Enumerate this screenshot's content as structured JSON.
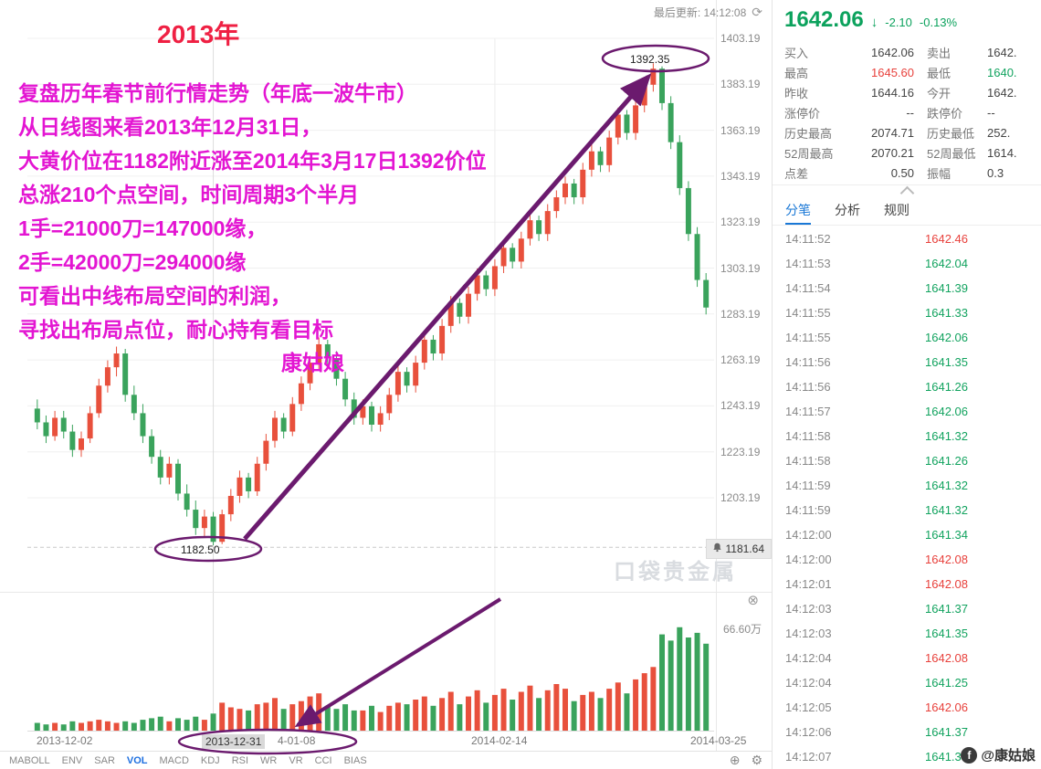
{
  "meta": {
    "last_update_label": "最后更新: 14:12:08"
  },
  "icons": {
    "refresh": "⟳",
    "close": "⊗",
    "circle_plus": "⊕",
    "gear": "⚙",
    "down": "↓"
  },
  "colors": {
    "up": "#e8503c",
    "down": "#3aa35c",
    "quote_green": "#0ca25d",
    "high_red": "#e8413c",
    "annotation_magenta": "#e315d2",
    "annotation_title_red": "#ef2043",
    "arrow_purple": "#6b1a6e",
    "active_tab_blue": "#1a78d6"
  },
  "chart": {
    "y_labels": [
      "1403.19",
      "1383.19",
      "1363.19",
      "1343.19",
      "1323.19",
      "1303.19",
      "1283.19",
      "1263.19",
      "1243.19",
      "1223.19",
      "1203.19"
    ],
    "x_labels": [
      "2013-12-02",
      "2013-12-31",
      "4-01-08",
      "2014-02-14",
      "2014-03-25"
    ],
    "current_price": "1181.64",
    "volume_max_label": "66.60万",
    "watermark": "口袋贵金属",
    "indicators": [
      "MABOLL",
      "ENV",
      "SAR",
      "VOL",
      "MACD",
      "KDJ",
      "RSI",
      "WR",
      "VR",
      "CCI",
      "BIAS"
    ],
    "active_indicator": "VOL"
  },
  "annotations": {
    "title": "2013年",
    "lines": [
      "复盘历年春节前行情走势（年底一波牛市）",
      "从日线图来看2013年12月31日，",
      "大黄价位在1182附近涨至2014年3月17日1392价位",
      "总涨210个点空间，时间周期3个半月",
      "1手=21000刀=147000缘，",
      "2手=42000刀=294000缘",
      "可看出中线布局空间的利润，",
      "寻找出布局点位，耐心持有看目标"
    ],
    "signature": "康姑娘",
    "high_label": "1392.35",
    "low_label": "1182.50"
  },
  "side": {
    "quote": {
      "price": "1642.06",
      "change": "-2.10",
      "change_pct": "-0.13%"
    },
    "stats_rows": [
      {
        "l1": "买入",
        "v1": "1642.06",
        "c1": "dark",
        "l2": "卖出",
        "v2": "1642.",
        "c2": "dark"
      },
      {
        "l1": "最高",
        "v1": "1645.60",
        "c1": "red",
        "l2": "最低",
        "v2": "1640.",
        "c2": "green"
      },
      {
        "l1": "昨收",
        "v1": "1644.16",
        "c1": "dark",
        "l2": "今开",
        "v2": "1642.",
        "c2": "dark"
      },
      {
        "l1": "涨停价",
        "v1": "--",
        "c1": "dark",
        "l2": "跌停价",
        "v2": "--",
        "c2": "dark"
      },
      {
        "l1": "历史最高",
        "v1": "2074.71",
        "c1": "dark",
        "l2": "历史最低",
        "v2": "252.",
        "c2": "dark"
      },
      {
        "l1": "52周最高",
        "v1": "2070.21",
        "c1": "dark",
        "l2": "52周最低",
        "v2": "1614.",
        "c2": "dark"
      },
      {
        "l1": "点差",
        "v1": "0.50",
        "c1": "dark",
        "l2": "振幅",
        "v2": "0.3",
        "c2": "dark"
      }
    ],
    "tabs": [
      {
        "label": "分笔",
        "active": true
      },
      {
        "label": "分析",
        "active": false
      },
      {
        "label": "规则",
        "active": false
      }
    ],
    "ticks": [
      {
        "t": "14:11:52",
        "p": "1642.46",
        "d": "up"
      },
      {
        "t": "14:11:53",
        "p": "1642.04",
        "d": "down"
      },
      {
        "t": "14:11:54",
        "p": "1641.39",
        "d": "down"
      },
      {
        "t": "14:11:55",
        "p": "1641.33",
        "d": "down"
      },
      {
        "t": "14:11:55",
        "p": "1642.06",
        "d": "down"
      },
      {
        "t": "14:11:56",
        "p": "1641.35",
        "d": "down"
      },
      {
        "t": "14:11:56",
        "p": "1641.26",
        "d": "down"
      },
      {
        "t": "14:11:57",
        "p": "1642.06",
        "d": "down"
      },
      {
        "t": "14:11:58",
        "p": "1641.32",
        "d": "down"
      },
      {
        "t": "14:11:58",
        "p": "1641.26",
        "d": "down"
      },
      {
        "t": "14:11:59",
        "p": "1641.32",
        "d": "down"
      },
      {
        "t": "14:11:59",
        "p": "1641.32",
        "d": "down"
      },
      {
        "t": "14:12:00",
        "p": "1641.34",
        "d": "down"
      },
      {
        "t": "14:12:00",
        "p": "1642.08",
        "d": "up"
      },
      {
        "t": "14:12:01",
        "p": "1642.08",
        "d": "up"
      },
      {
        "t": "14:12:03",
        "p": "1641.37",
        "d": "down"
      },
      {
        "t": "14:12:03",
        "p": "1641.35",
        "d": "down"
      },
      {
        "t": "14:12:04",
        "p": "1642.08",
        "d": "up"
      },
      {
        "t": "14:12:04",
        "p": "1641.25",
        "d": "down"
      },
      {
        "t": "14:12:05",
        "p": "1642.06",
        "d": "up"
      },
      {
        "t": "14:12:06",
        "p": "1641.37",
        "d": "down"
      },
      {
        "t": "14:12:07",
        "p": "1641.37",
        "d": "down"
      }
    ],
    "watermark_logo": "f",
    "watermark_text": "@康姑娘"
  },
  "chart_data": {
    "type": "candlestick",
    "x_range": [
      "2013-12-02",
      "2014-03-25"
    ],
    "y_axis_top": 1403.19,
    "y_axis_bottom": 1203.19,
    "low_point": {
      "date": "2013-12-31",
      "price": 1182.5
    },
    "high_point": {
      "date": "2014-03-17",
      "price": 1392.35
    },
    "volume_unit": "万",
    "volume_max": 66.6,
    "candles": [
      [
        1242,
        1246,
        1233,
        1236
      ],
      [
        1236,
        1239,
        1227,
        1230
      ],
      [
        1230,
        1241,
        1228,
        1238
      ],
      [
        1238,
        1241,
        1229,
        1232
      ],
      [
        1232,
        1235,
        1221,
        1224
      ],
      [
        1224,
        1232,
        1221,
        1229
      ],
      [
        1229,
        1243,
        1227,
        1240
      ],
      [
        1240,
        1255,
        1238,
        1252
      ],
      [
        1252,
        1263,
        1249,
        1260
      ],
      [
        1260,
        1269,
        1256,
        1266
      ],
      [
        1266,
        1268,
        1245,
        1248
      ],
      [
        1248,
        1252,
        1237,
        1240
      ],
      [
        1240,
        1244,
        1227,
        1230
      ],
      [
        1230,
        1233,
        1218,
        1221
      ],
      [
        1221,
        1224,
        1209,
        1212
      ],
      [
        1212,
        1221,
        1209,
        1218
      ],
      [
        1218,
        1220,
        1202,
        1205
      ],
      [
        1205,
        1209,
        1195,
        1198
      ],
      [
        1198,
        1202,
        1187,
        1190
      ],
      [
        1190,
        1198,
        1186,
        1195
      ],
      [
        1195,
        1197,
        1182.5,
        1184
      ],
      [
        1184,
        1198,
        1183,
        1196
      ],
      [
        1196,
        1207,
        1193,
        1204
      ],
      [
        1204,
        1215,
        1201,
        1212
      ],
      [
        1212,
        1214,
        1203,
        1206
      ],
      [
        1206,
        1221,
        1204,
        1218
      ],
      [
        1218,
        1231,
        1215,
        1228
      ],
      [
        1228,
        1241,
        1225,
        1238
      ],
      [
        1238,
        1240,
        1229,
        1232
      ],
      [
        1232,
        1247,
        1230,
        1244
      ],
      [
        1244,
        1256,
        1241,
        1253
      ],
      [
        1253,
        1265,
        1250,
        1262
      ],
      [
        1262,
        1273,
        1259,
        1270
      ],
      [
        1270,
        1272,
        1261,
        1264
      ],
      [
        1264,
        1267,
        1252,
        1255
      ],
      [
        1255,
        1258,
        1243,
        1246
      ],
      [
        1246,
        1249,
        1235,
        1238
      ],
      [
        1238,
        1246,
        1235,
        1243
      ],
      [
        1243,
        1245,
        1232,
        1235
      ],
      [
        1235,
        1243,
        1232,
        1240
      ],
      [
        1240,
        1251,
        1237,
        1248
      ],
      [
        1248,
        1261,
        1245,
        1258
      ],
      [
        1258,
        1260,
        1249,
        1252
      ],
      [
        1252,
        1265,
        1249,
        1262
      ],
      [
        1262,
        1275,
        1259,
        1272
      ],
      [
        1272,
        1274,
        1263,
        1266
      ],
      [
        1266,
        1281,
        1263,
        1278
      ],
      [
        1278,
        1291,
        1275,
        1288
      ],
      [
        1288,
        1290,
        1279,
        1282
      ],
      [
        1282,
        1295,
        1279,
        1292
      ],
      [
        1292,
        1303,
        1289,
        1300
      ],
      [
        1300,
        1302,
        1291,
        1294
      ],
      [
        1294,
        1307,
        1291,
        1304
      ],
      [
        1304,
        1315,
        1301,
        1312
      ],
      [
        1312,
        1314,
        1303,
        1306
      ],
      [
        1306,
        1319,
        1303,
        1316
      ],
      [
        1316,
        1327,
        1313,
        1324
      ],
      [
        1324,
        1326,
        1315,
        1318
      ],
      [
        1318,
        1331,
        1315,
        1328
      ],
      [
        1328,
        1337,
        1325,
        1334
      ],
      [
        1334,
        1343,
        1331,
        1340
      ],
      [
        1340,
        1342,
        1331,
        1334
      ],
      [
        1334,
        1349,
        1331,
        1346
      ],
      [
        1346,
        1357,
        1343,
        1354
      ],
      [
        1354,
        1356,
        1345,
        1348
      ],
      [
        1348,
        1363,
        1345,
        1360
      ],
      [
        1360,
        1373,
        1357,
        1370
      ],
      [
        1370,
        1372,
        1359,
        1362
      ],
      [
        1362,
        1377,
        1359,
        1374
      ],
      [
        1374,
        1386,
        1371,
        1383
      ],
      [
        1383,
        1392.35,
        1380,
        1390
      ],
      [
        1390,
        1391,
        1372,
        1375
      ],
      [
        1375,
        1378,
        1355,
        1358
      ],
      [
        1358,
        1361,
        1335,
        1338
      ],
      [
        1338,
        1341,
        1315,
        1318
      ],
      [
        1318,
        1321,
        1295,
        1298
      ],
      [
        1298,
        1301,
        1283,
        1286
      ]
    ],
    "volumes": [
      5,
      4,
      5,
      4,
      6,
      5,
      6,
      7,
      6,
      5,
      6,
      5,
      7,
      8,
      9,
      6,
      8,
      7,
      9,
      7,
      11,
      18,
      15,
      14,
      13,
      17,
      18,
      21,
      14,
      17,
      19,
      22,
      24,
      16,
      14,
      17,
      13,
      13,
      16,
      12,
      16,
      18,
      17,
      20,
      22,
      16,
      21,
      25,
      17,
      22,
      26,
      18,
      23,
      27,
      20,
      25,
      29,
      21,
      26,
      30,
      27,
      19,
      23,
      25,
      21,
      27,
      31,
      24,
      33,
      37,
      41,
      62,
      58,
      66.6,
      60,
      63,
      56
    ]
  }
}
